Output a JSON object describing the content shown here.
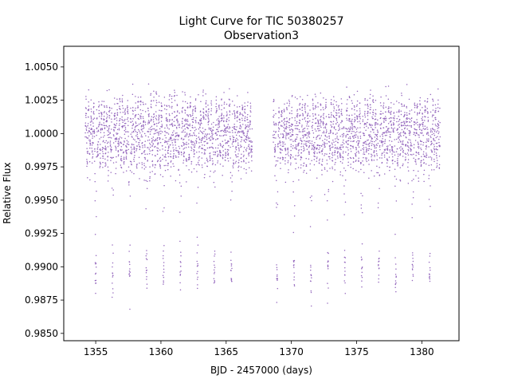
{
  "chart_data": {
    "type": "scatter",
    "title": "Light Curve for TIC 50380257",
    "subtitle": "Observation3",
    "xlabel": "BJD - 2457000 (days)",
    "ylabel": "Relative Flux",
    "xlim": [
      1352.55,
      1382.85
    ],
    "ylim": [
      0.98445,
      1.00655
    ],
    "x_ticks": [
      1355,
      1360,
      1365,
      1370,
      1375,
      1380
    ],
    "x_tick_labels": [
      "1355",
      "1360",
      "1365",
      "1370",
      "1375",
      "1380"
    ],
    "y_ticks": [
      0.985,
      0.9875,
      0.99,
      0.9925,
      0.995,
      0.9975,
      1.0,
      1.0025,
      1.005
    ],
    "y_tick_labels": [
      "0.9850",
      "0.9875",
      "0.9900",
      "0.9925",
      "0.9950",
      "0.9975",
      "1.0000",
      "1.0025",
      "1.0050"
    ],
    "grid": false,
    "marker_color": "#9467bd",
    "series": [
      {
        "segments": [
          [
            1354.2,
            1367.0
          ],
          [
            1368.6,
            1381.4
          ]
        ],
        "baseline": 1.0,
        "oscillation_period_days": 0.2,
        "oscillation_amplitude": 0.0017,
        "noise_sigma": 0.0008,
        "eclipse_times": [
          1355.0,
          1356.3,
          1357.6,
          1358.9,
          1360.2,
          1361.5,
          1362.8,
          1364.1,
          1365.4,
          1368.9,
          1370.2,
          1371.5,
          1372.8,
          1374.1,
          1375.4,
          1376.7,
          1378.0,
          1379.3,
          1380.6
        ],
        "eclipse_min_flux": 0.9895
      }
    ]
  }
}
